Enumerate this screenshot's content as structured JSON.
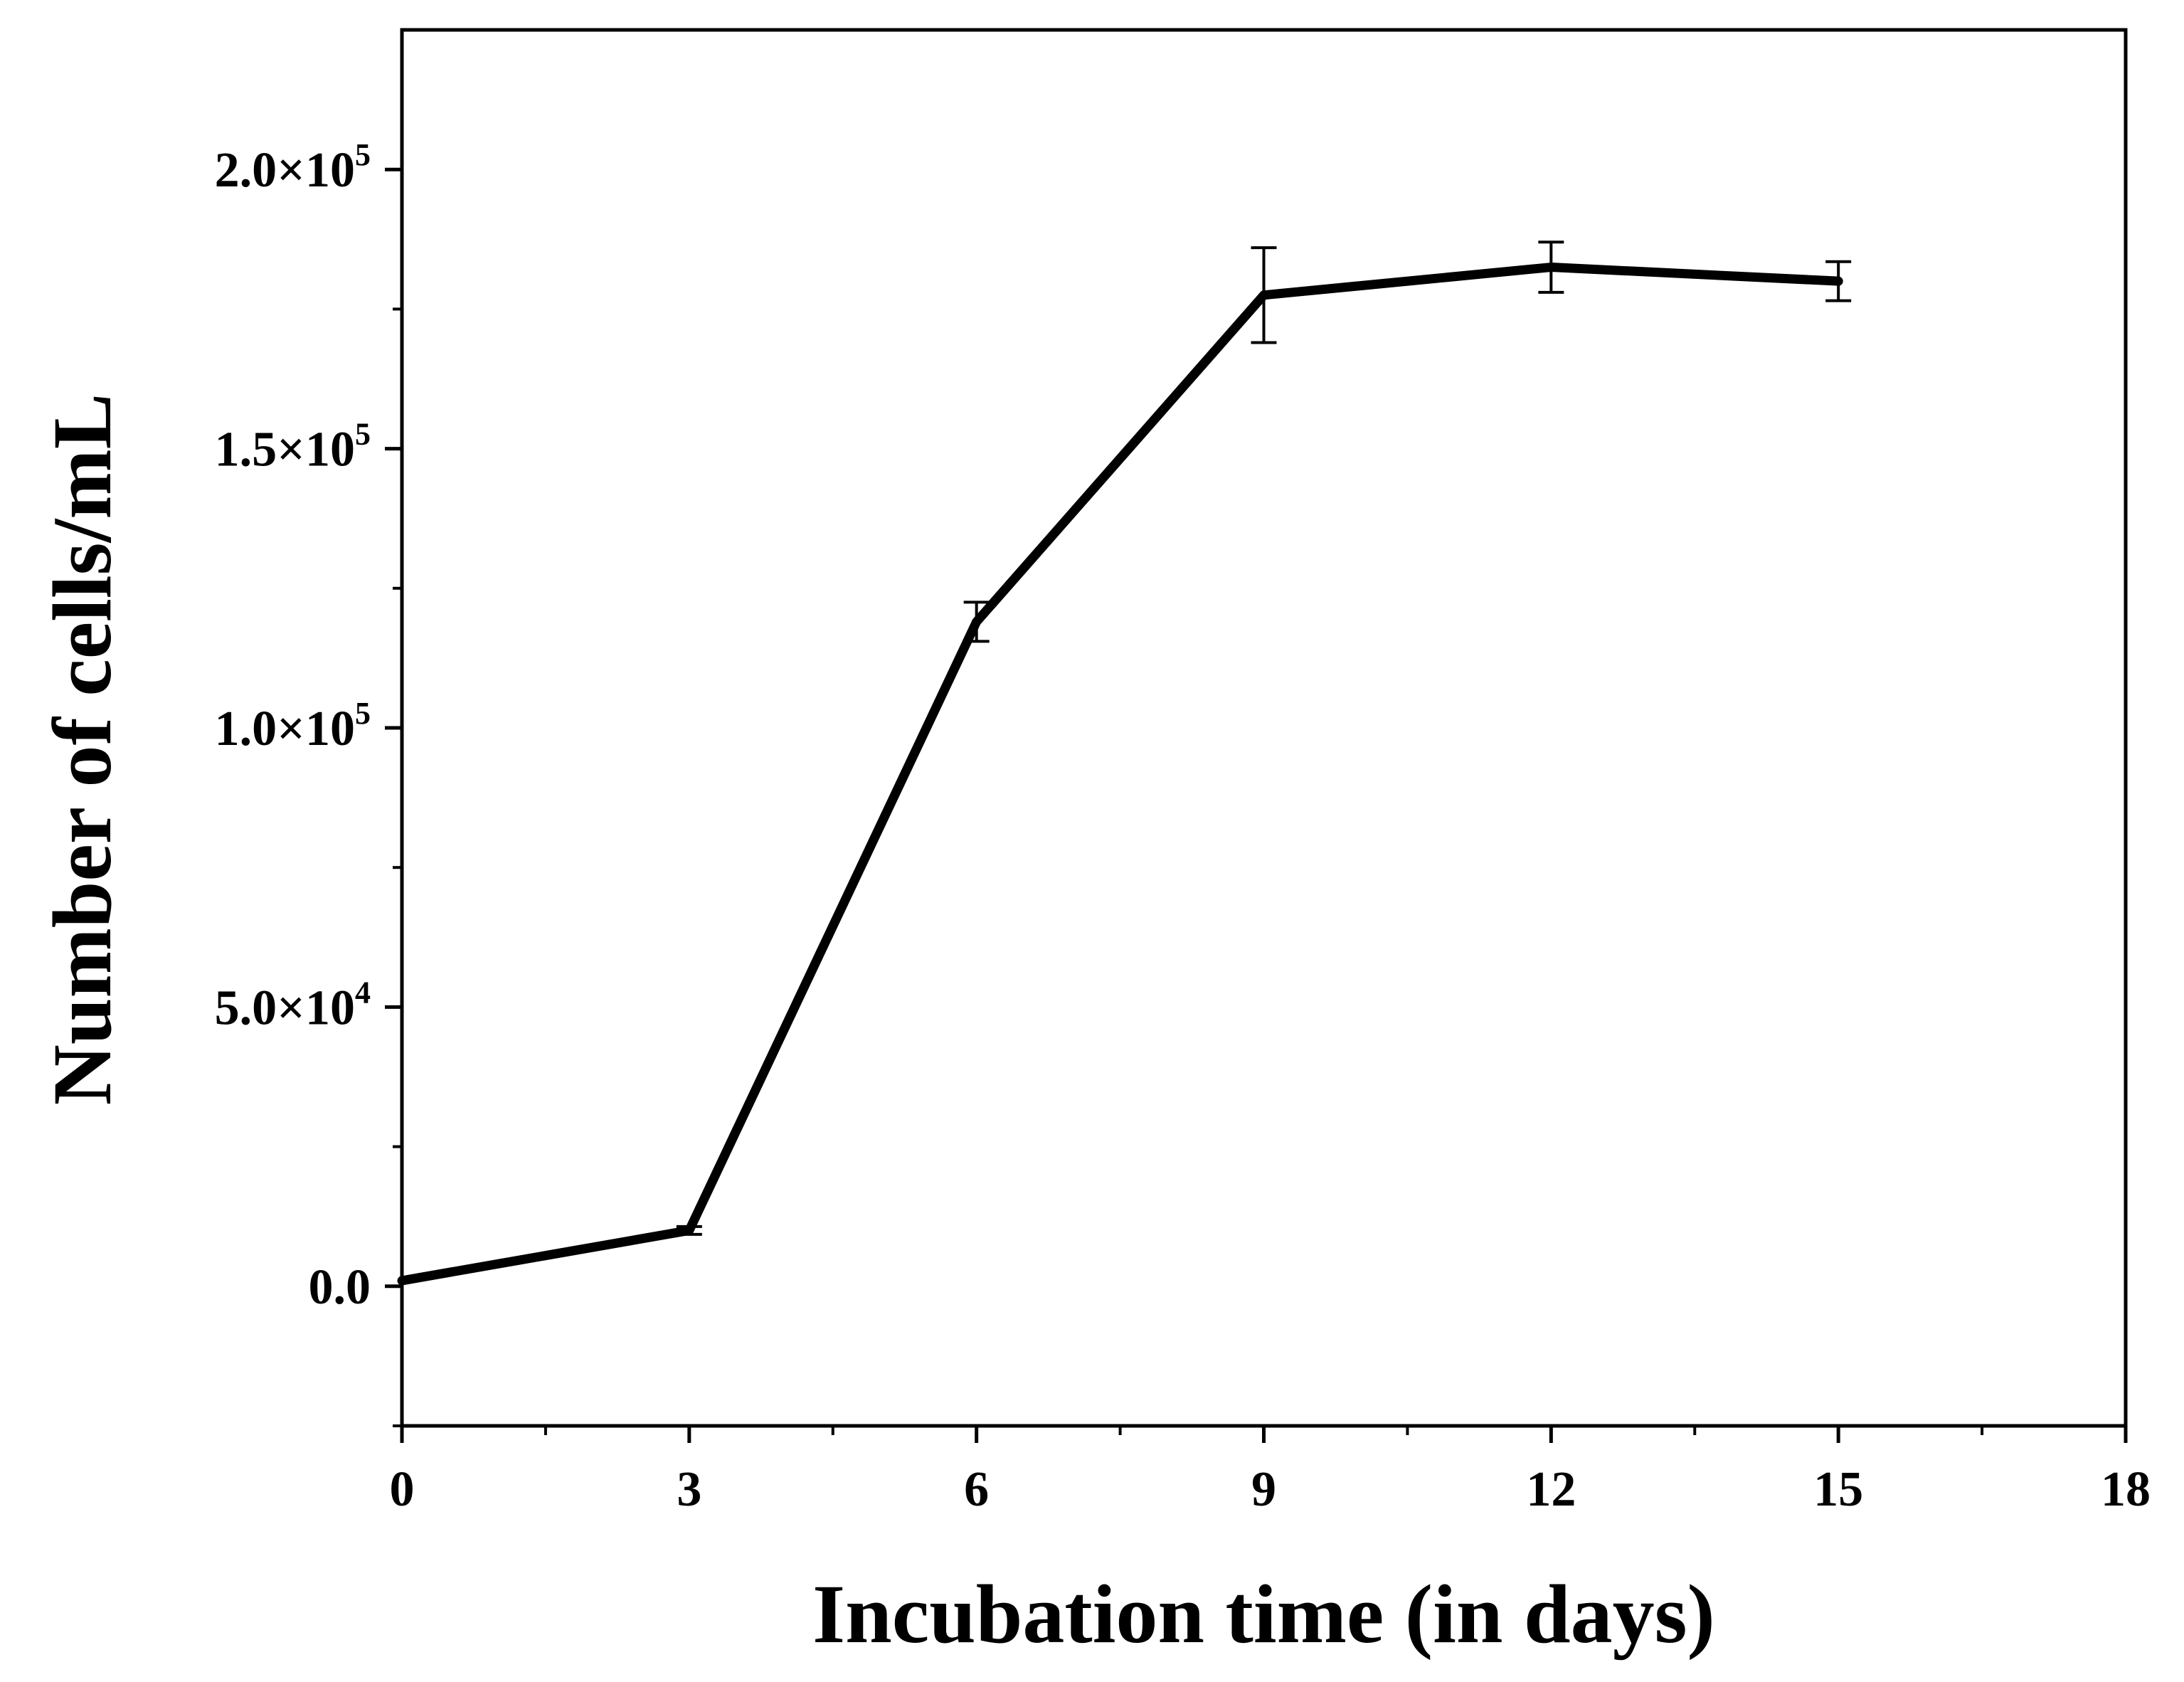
{
  "chart_data": {
    "type": "line",
    "title": "",
    "xlabel": "Incubation time (in days)",
    "ylabel": "Number of cells/mL",
    "xlim": [
      0,
      18
    ],
    "ylim": [
      -25000,
      225000
    ],
    "x_ticks": [
      0,
      3,
      6,
      9,
      12,
      15,
      18
    ],
    "x_tick_labels": [
      "0",
      "3",
      "6",
      "9",
      "12",
      "15",
      "18"
    ],
    "x_minor_ticks": [
      1.5,
      4.5,
      7.5,
      10.5,
      13.5,
      16.5
    ],
    "y_ticks": [
      0,
      50000,
      100000,
      150000,
      200000
    ],
    "y_tick_labels": [
      {
        "mantissa": "0.0",
        "times": "",
        "base": "",
        "exponent": ""
      },
      {
        "mantissa": "5.0",
        "times": "×",
        "base": "10",
        "exponent": "4"
      },
      {
        "mantissa": "1.0",
        "times": "×",
        "base": "10",
        "exponent": "5"
      },
      {
        "mantissa": "1.5",
        "times": "×",
        "base": "10",
        "exponent": "5"
      },
      {
        "mantissa": "2.0",
        "times": "×",
        "base": "10",
        "exponent": "5"
      }
    ],
    "y_minor_ticks": [
      -25000,
      25000,
      75000,
      125000,
      175000
    ],
    "grid": false,
    "legend": null,
    "series": [
      {
        "name": "cells",
        "color": "#000000",
        "x": [
          0,
          3,
          6,
          9,
          12,
          15
        ],
        "y": [
          1000,
          10000,
          119000,
          177500,
          182500,
          180000
        ],
        "error": [
          0,
          700,
          3500,
          8500,
          4500,
          3500
        ]
      }
    ]
  }
}
